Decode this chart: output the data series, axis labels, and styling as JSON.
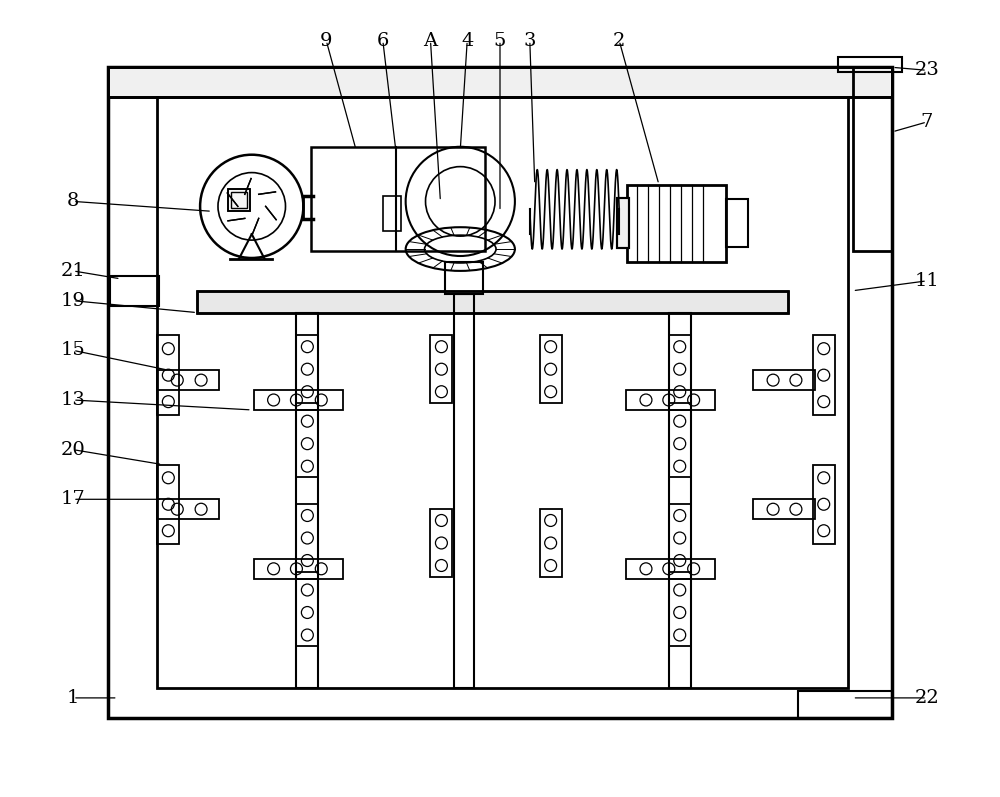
{
  "bg_color": "#ffffff",
  "lc": "#000000",
  "fig_w": 10.0,
  "fig_h": 7.97
}
